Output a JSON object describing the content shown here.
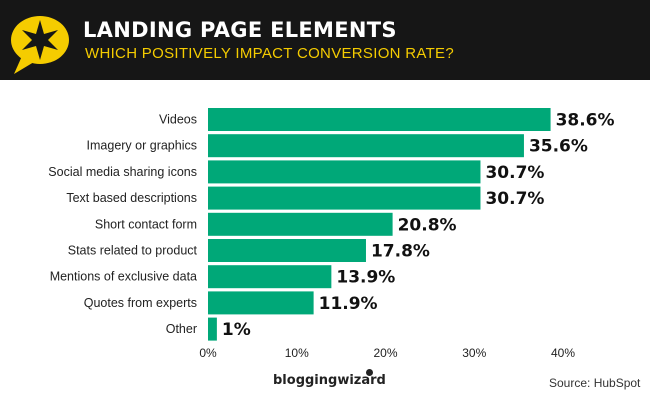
{
  "header": {
    "title": "LANDING PAGE ELEMENTS",
    "subtitle": "WHICH POSITIVELY IMPACT CONVERSION RATE?",
    "accent": "#f5cc00",
    "background": "#161616"
  },
  "chart_data": {
    "type": "bar",
    "orientation": "horizontal",
    "categories": [
      "Videos",
      "Imagery or graphics",
      "Social media sharing icons",
      "Text based descriptions",
      "Short contact form",
      "Stats related to product",
      "Mentions of exclusive data",
      "Quotes from experts",
      "Other"
    ],
    "values": [
      38.6,
      35.6,
      30.7,
      30.7,
      20.8,
      17.8,
      13.9,
      11.9,
      1
    ],
    "data_labels": [
      "38.6%",
      "35.6%",
      "30.7%",
      "30.7%",
      "20.8%",
      "17.8%",
      "13.9%",
      "11.9%",
      "1%"
    ],
    "xlim": [
      0,
      40
    ],
    "x_ticks": [
      "0%",
      "10%",
      "20%",
      "30%",
      "40%"
    ],
    "grid": false,
    "bar_color": "#00a878"
  },
  "footer": {
    "brand": "bloggingwizard",
    "source": "Source: HubSpot"
  }
}
